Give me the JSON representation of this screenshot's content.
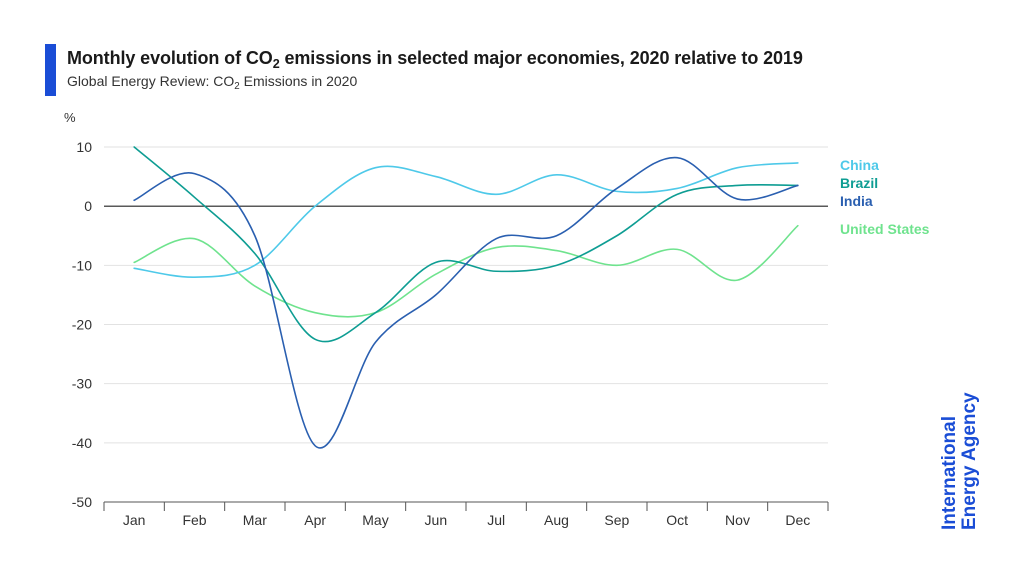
{
  "header": {
    "title_pre": "Monthly evolution of CO",
    "title_sub": "2",
    "title_post": " emissions in selected major economies, 2020 relative to 2019",
    "subtitle_pre": "Global Energy Review: CO",
    "subtitle_sub": "2",
    "subtitle_post": " Emissions in 2020"
  },
  "logo": {
    "line1": "International",
    "line2": "Energy Agency"
  },
  "colors": {
    "accent": "#1a4dd6",
    "China": "#4ec9e9",
    "Brazil": "#0e9d93",
    "India": "#2a5fb0",
    "United States": "#6fe38e",
    "zero_line": "#222222",
    "grid": "#e2e2e2",
    "tick_text": "#333333"
  },
  "chart_data": {
    "type": "line",
    "ylabel": "%",
    "ylim": [
      -50,
      10
    ],
    "yticks": [
      10,
      0,
      -10,
      -20,
      -30,
      -40,
      -50
    ],
    "categories": [
      "Jan",
      "Feb",
      "Mar",
      "Apr",
      "May",
      "Jun",
      "Jul",
      "Aug",
      "Sep",
      "Oct",
      "Nov",
      "Dec"
    ],
    "grid": true,
    "legend_position": "right",
    "series": [
      {
        "name": "China",
        "values": [
          -10.5,
          -12,
          -10,
          0,
          6.5,
          5,
          2,
          5.3,
          2.5,
          3,
          6.5,
          7.3
        ]
      },
      {
        "name": "Brazil",
        "values": [
          10,
          1.5,
          -8,
          -22.5,
          -18,
          -9.5,
          -11,
          -10,
          -5,
          2,
          3.5,
          3.5
        ]
      },
      {
        "name": "India",
        "values": [
          1,
          5.5,
          -5,
          -40.5,
          -23,
          -15,
          -5.5,
          -5,
          3,
          8.2,
          1.2,
          3.5
        ]
      },
      {
        "name": "United States",
        "values": [
          -9.5,
          -5.5,
          -13.5,
          -18,
          -18,
          -11.5,
          -7,
          -7.5,
          -10,
          -7.3,
          -12.5,
          -3.3
        ]
      }
    ]
  }
}
